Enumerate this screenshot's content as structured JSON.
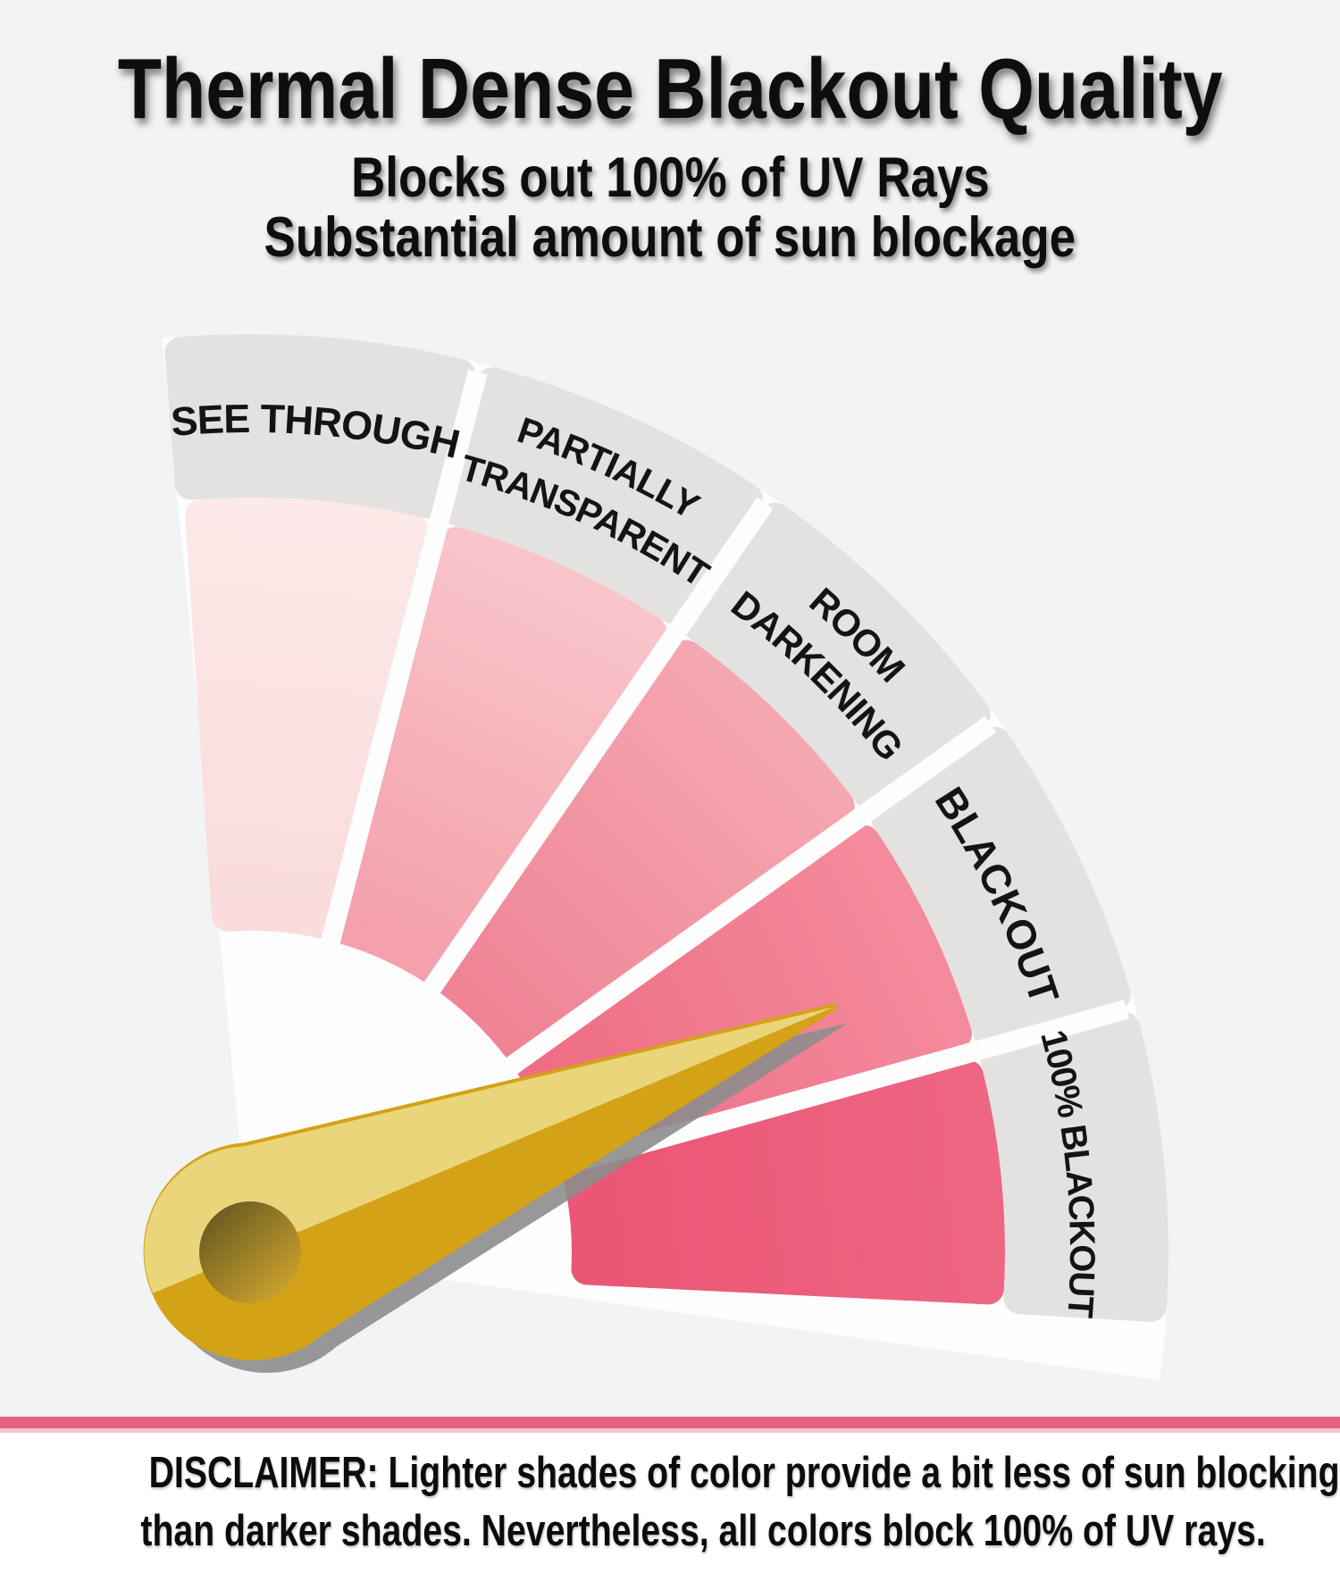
{
  "header": {
    "title": "Thermal Dense Blackout Quality",
    "subtitle_line1": "Blocks out 100% of UV Rays",
    "subtitle_line2": "Substantial amount of sun blockage"
  },
  "gauge": {
    "band_color": "#e3e2e0",
    "gap_color": "#fdfdfe",
    "label_color": "#141414",
    "segments": [
      {
        "id": "see-through",
        "lines": [
          "SEE THROUGH"
        ],
        "color_outer": "#fce9e8",
        "color_inner": "#f9dcdb"
      },
      {
        "id": "partially-transparent",
        "lines": [
          "PARTIALLY",
          "TRANSPARENT"
        ],
        "color_outer": "#f9c5cb",
        "color_inner": "#f3a0ab"
      },
      {
        "id": "room-darkening",
        "lines": [
          "ROOM",
          "DARKENING"
        ],
        "color_outer": "#f5a7b1",
        "color_inner": "#ef8495"
      },
      {
        "id": "blackout",
        "lines": [
          "BLACKOUT"
        ],
        "color_outer": "#f48b9c",
        "color_inner": "#ee6d84"
      },
      {
        "id": "100-percent-blackout",
        "lines": [
          "100% BLACKOUT"
        ],
        "color_outer": "#ee6682",
        "color_inner": "#ea5674"
      }
    ],
    "needle": {
      "color_light": "#ebd57b",
      "color_dark": "#d3a216",
      "hole_dark": "#6c5b22",
      "hole_light": "#cba22c",
      "shadow": "#8d8d8d"
    }
  },
  "footer": {
    "divider_color": "#e2617b",
    "divider_light_color": "#f4c3cf",
    "disclaimer_line1": "DISCLAIMER: Lighter shades of color provide a bit less of sun blocking",
    "disclaimer_line2": "than darker shades. Nevertheless, all colors block 100% of UV rays."
  }
}
